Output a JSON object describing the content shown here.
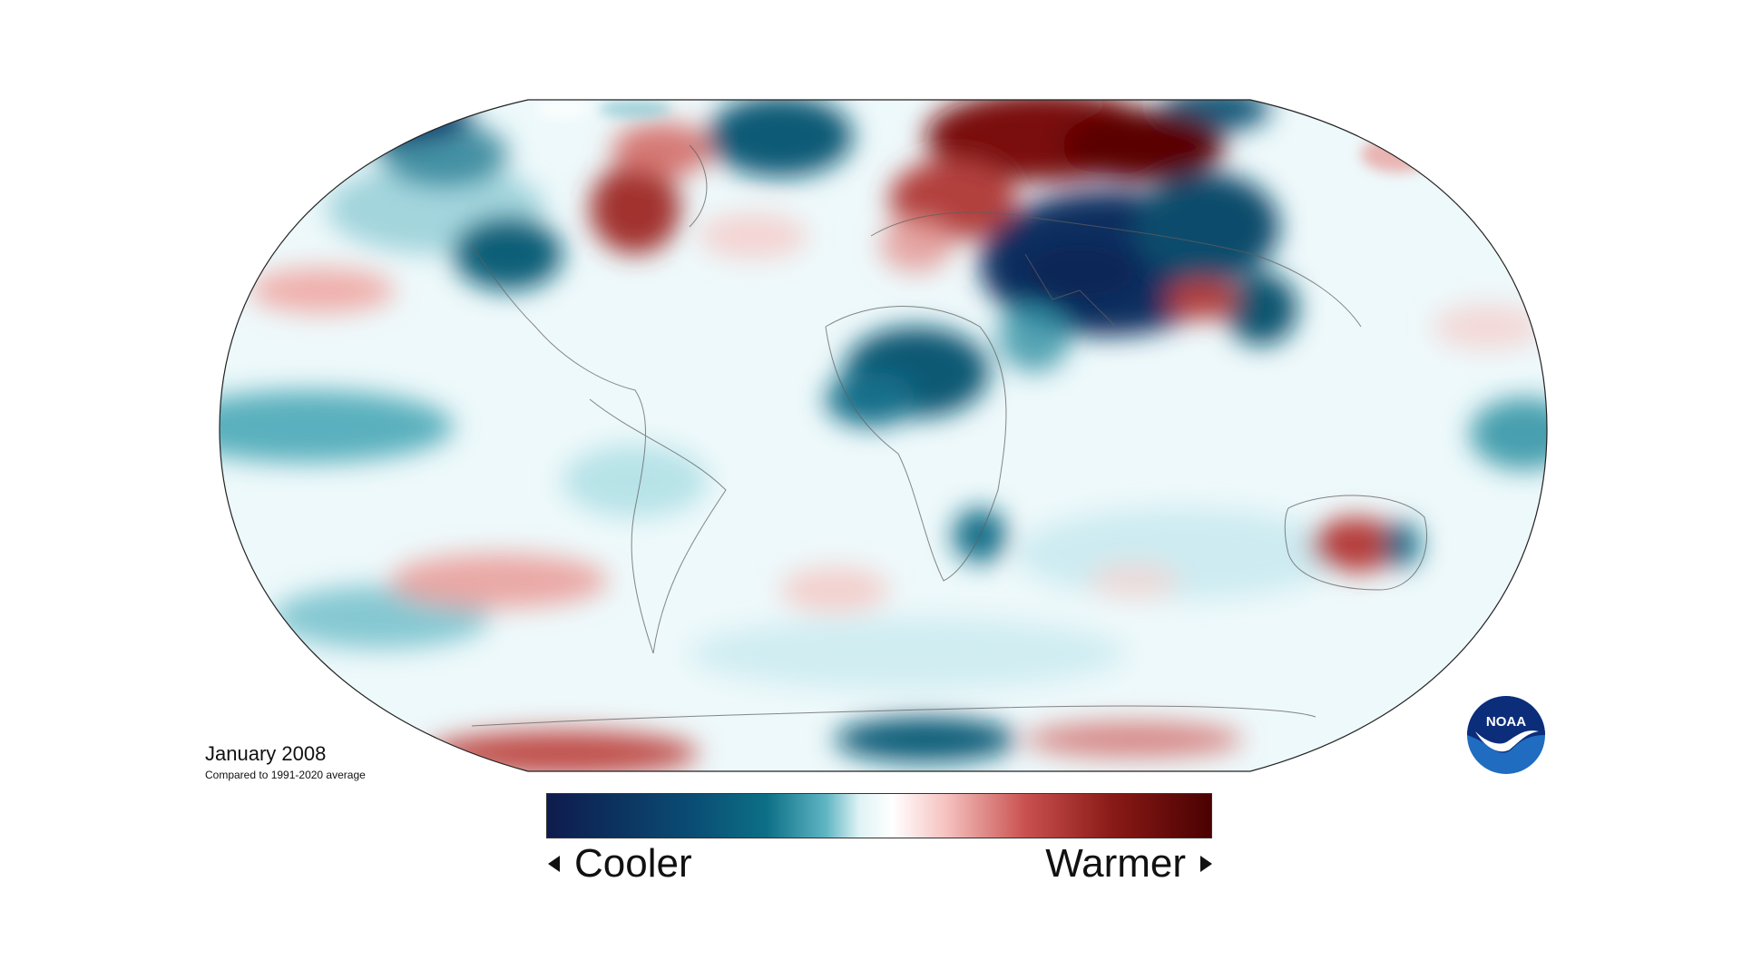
{
  "map": {
    "title": "January 2008",
    "subtitle": "Compared to 1991-2020 average",
    "projection": "robinson",
    "variable": "temperature anomaly"
  },
  "legend": {
    "cool_label": "Cooler",
    "warm_label": "Warmer",
    "cool_arrow_icon": "triangle-left-icon",
    "warm_arrow_icon": "triangle-right-icon",
    "colors": [
      "#0e1b4d",
      "#0c6f86",
      "#ffffff",
      "#c9514f",
      "#4a0101"
    ]
  },
  "logo": {
    "text": "NOAA",
    "icon": "noaa-seagull-logo"
  }
}
